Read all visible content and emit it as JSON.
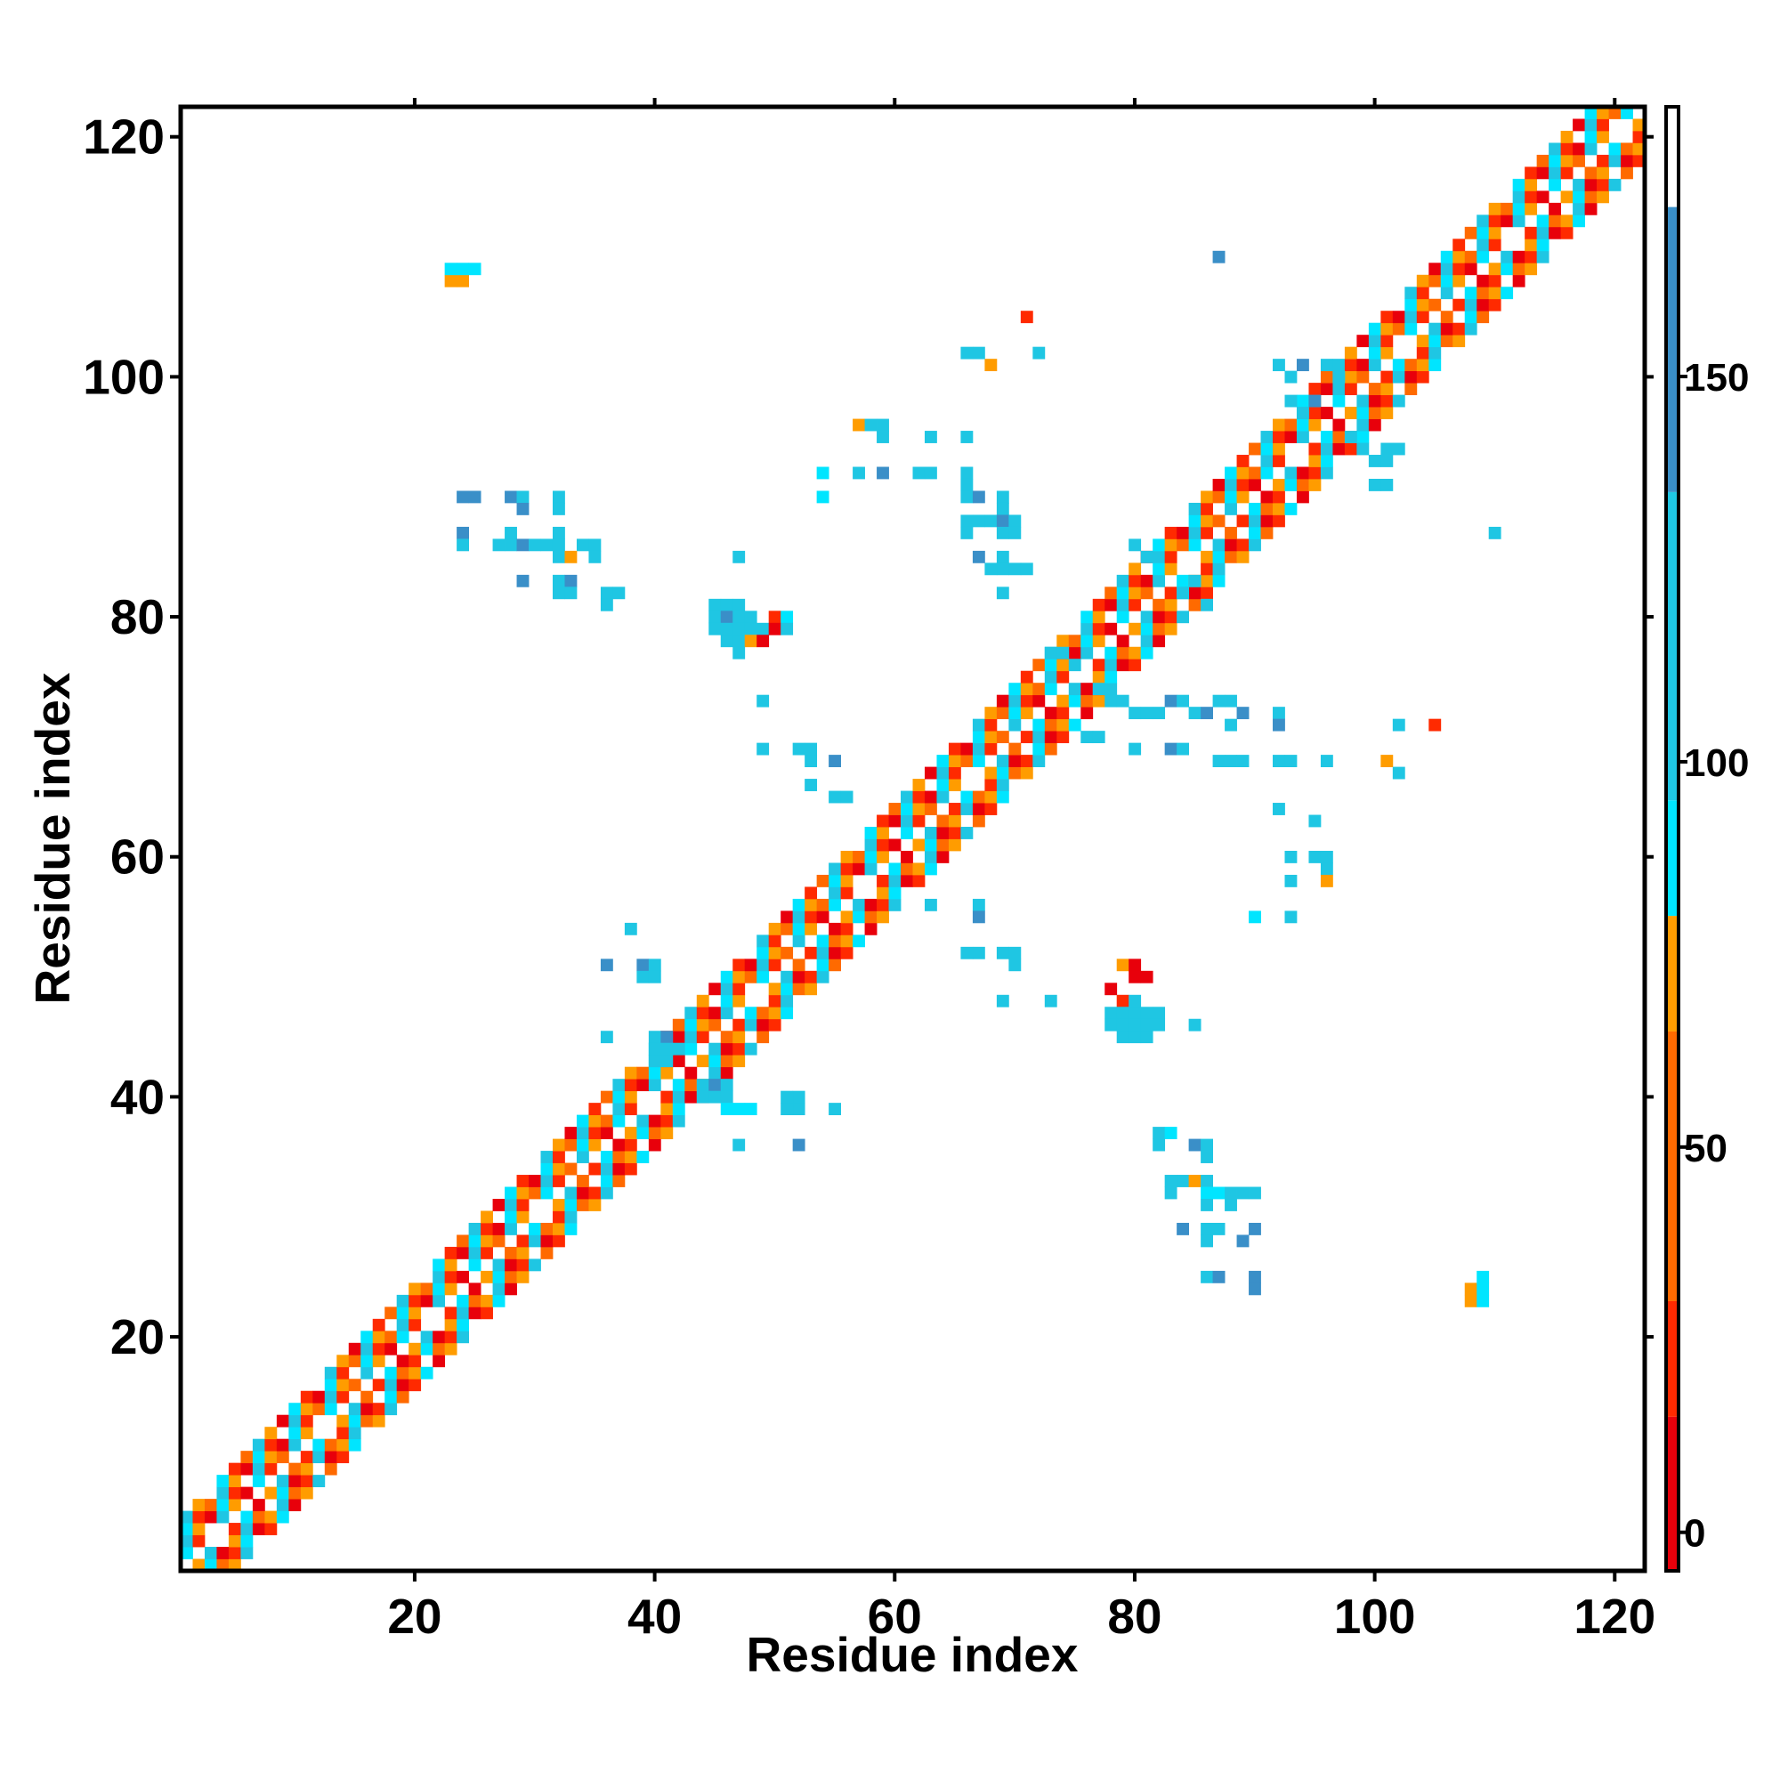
{
  "chart_data": {
    "type": "heatmap",
    "xlabel": "Residue index",
    "ylabel": "Residue index",
    "xlim": [
      0.5,
      122.5
    ],
    "ylim": [
      0.5,
      122.5
    ],
    "x_ticks": [
      20,
      40,
      60,
      80,
      100,
      120
    ],
    "y_ticks": [
      20,
      40,
      60,
      80,
      100,
      120
    ],
    "colorbar": {
      "range": [
        -5,
        185
      ],
      "ticks": [
        0,
        50,
        100,
        150
      ],
      "bands": [
        {
          "from": -5,
          "to": 15,
          "color": "#e8000b"
        },
        {
          "from": 15,
          "to": 30,
          "color": "#ff2a00"
        },
        {
          "from": 30,
          "to": 65,
          "color": "#ff6a00"
        },
        {
          "from": 65,
          "to": 80,
          "color": "#ff9c00"
        },
        {
          "from": 80,
          "to": 95,
          "color": "#00e5ff"
        },
        {
          "from": 95,
          "to": 135,
          "color": "#1fc6e3"
        },
        {
          "from": 135,
          "to": 172,
          "color": "#3a8fc8"
        },
        {
          "from": 172,
          "to": 185,
          "color": "#ffffff"
        }
      ]
    },
    "diagonal_band": {
      "color_cycle": [
        "#ff6a00",
        "#1fc6e3",
        "#ff9c00",
        "#e8000b",
        "#00e5ff",
        "#ff2a00"
      ],
      "half_width": 4
    },
    "off_diagonal_cells": [
      [
        23,
        108,
        "#ff9c00"
      ],
      [
        24,
        108,
        "#ff9c00"
      ],
      [
        23,
        109,
        "#00e5ff"
      ],
      [
        24,
        109,
        "#00e5ff"
      ],
      [
        25,
        109,
        "#00e5ff"
      ],
      [
        87,
        110,
        "#3a8fc8"
      ],
      [
        71,
        105,
        "#ff2a00"
      ],
      [
        66,
        102,
        "#1fc6e3"
      ],
      [
        68,
        101,
        "#ff9c00"
      ],
      [
        67,
        102,
        "#1fc6e3"
      ],
      [
        72,
        102,
        "#1fc6e3"
      ],
      [
        57,
        96,
        "#ff9c00"
      ],
      [
        58,
        96,
        "#1fc6e3"
      ],
      [
        59,
        96,
        "#1fc6e3"
      ],
      [
        59,
        95,
        "#1fc6e3"
      ],
      [
        63,
        95,
        "#1fc6e3"
      ],
      [
        66,
        95,
        "#1fc6e3"
      ],
      [
        54,
        92,
        "#00e5ff"
      ],
      [
        57,
        92,
        "#1fc6e3"
      ],
      [
        59,
        92,
        "#3a8fc8"
      ],
      [
        62,
        92,
        "#1fc6e3"
      ],
      [
        63,
        92,
        "#1fc6e3"
      ],
      [
        66,
        92,
        "#1fc6e3"
      ],
      [
        54,
        90,
        "#00e5ff"
      ],
      [
        66,
        91,
        "#1fc6e3"
      ],
      [
        66,
        90,
        "#1fc6e3"
      ],
      [
        67,
        90,
        "#3a8fc8"
      ],
      [
        69,
        90,
        "#1fc6e3"
      ],
      [
        69,
        89,
        "#1fc6e3"
      ],
      [
        66,
        88,
        "#1fc6e3"
      ],
      [
        67,
        88,
        "#1fc6e3"
      ],
      [
        68,
        88,
        "#1fc6e3"
      ],
      [
        69,
        88,
        "#3a8fc8"
      ],
      [
        70,
        88,
        "#1fc6e3"
      ],
      [
        66,
        87,
        "#1fc6e3"
      ],
      [
        69,
        87,
        "#1fc6e3"
      ],
      [
        70,
        87,
        "#1fc6e3"
      ],
      [
        67,
        85,
        "#3a8fc8"
      ],
      [
        69,
        85,
        "#1fc6e3"
      ],
      [
        69,
        84,
        "#1fc6e3"
      ],
      [
        70,
        84,
        "#1fc6e3"
      ],
      [
        71,
        84,
        "#1fc6e3"
      ],
      [
        68,
        84,
        "#1fc6e3"
      ],
      [
        69,
        82,
        "#1fc6e3"
      ],
      [
        24,
        90,
        "#3a8fc8"
      ],
      [
        25,
        90,
        "#3a8fc8"
      ],
      [
        28,
        90,
        "#3a8fc8"
      ],
      [
        29,
        90,
        "#1fc6e3"
      ],
      [
        32,
        90,
        "#1fc6e3"
      ],
      [
        29,
        89,
        "#3a8fc8"
      ],
      [
        32,
        89,
        "#1fc6e3"
      ],
      [
        24,
        87,
        "#3a8fc8"
      ],
      [
        28,
        87,
        "#1fc6e3"
      ],
      [
        32,
        87,
        "#1fc6e3"
      ],
      [
        24,
        86,
        "#1fc6e3"
      ],
      [
        27,
        86,
        "#1fc6e3"
      ],
      [
        28,
        86,
        "#1fc6e3"
      ],
      [
        29,
        86,
        "#3a8fc8"
      ],
      [
        30,
        86,
        "#1fc6e3"
      ],
      [
        31,
        86,
        "#1fc6e3"
      ],
      [
        32,
        86,
        "#1fc6e3"
      ],
      [
        34,
        86,
        "#1fc6e3"
      ],
      [
        35,
        86,
        "#1fc6e3"
      ],
      [
        32,
        85,
        "#1fc6e3"
      ],
      [
        33,
        85,
        "#ff9c00"
      ],
      [
        35,
        85,
        "#1fc6e3"
      ],
      [
        29,
        83,
        "#3a8fc8"
      ],
      [
        32,
        83,
        "#1fc6e3"
      ],
      [
        33,
        83,
        "#3a8fc8"
      ],
      [
        32,
        82,
        "#1fc6e3"
      ],
      [
        33,
        82,
        "#1fc6e3"
      ],
      [
        36,
        82,
        "#1fc6e3"
      ],
      [
        37,
        82,
        "#1fc6e3"
      ],
      [
        36,
        81,
        "#1fc6e3"
      ],
      [
        47,
        85,
        "#1fc6e3"
      ],
      [
        45,
        81,
        "#1fc6e3"
      ],
      [
        46,
        81,
        "#1fc6e3"
      ],
      [
        47,
        81,
        "#1fc6e3"
      ],
      [
        45,
        80,
        "#1fc6e3"
      ],
      [
        46,
        80,
        "#3a8fc8"
      ],
      [
        47,
        80,
        "#1fc6e3"
      ],
      [
        48,
        80,
        "#1fc6e3"
      ],
      [
        50,
        80,
        "#ff2a00"
      ],
      [
        51,
        80,
        "#00e5ff"
      ],
      [
        45,
        79,
        "#1fc6e3"
      ],
      [
        46,
        79,
        "#1fc6e3"
      ],
      [
        47,
        79,
        "#1fc6e3"
      ],
      [
        48,
        79,
        "#1fc6e3"
      ],
      [
        49,
        79,
        "#1fc6e3"
      ],
      [
        50,
        79,
        "#e8000b"
      ],
      [
        51,
        79,
        "#1fc6e3"
      ],
      [
        46,
        78,
        "#1fc6e3"
      ],
      [
        47,
        78,
        "#1fc6e3"
      ],
      [
        48,
        78,
        "#ff9c00"
      ],
      [
        49,
        78,
        "#e8000b"
      ],
      [
        47,
        77,
        "#1fc6e3"
      ],
      [
        49,
        73,
        "#1fc6e3"
      ],
      [
        49,
        69,
        "#1fc6e3"
      ],
      [
        52,
        69,
        "#1fc6e3"
      ],
      [
        53,
        69,
        "#1fc6e3"
      ],
      [
        55,
        68,
        "#3a8fc8"
      ],
      [
        53,
        68,
        "#1fc6e3"
      ],
      [
        53,
        66,
        "#1fc6e3"
      ],
      [
        55,
        65,
        "#1fc6e3"
      ],
      [
        56,
        65,
        "#1fc6e3"
      ],
      [
        52,
        39,
        "#1fc6e3"
      ],
      [
        51,
        39,
        "#1fc6e3"
      ],
      [
        52,
        40,
        "#1fc6e3"
      ],
      [
        51,
        40,
        "#1fc6e3"
      ],
      [
        55,
        39,
        "#1fc6e3"
      ],
      [
        47,
        36,
        "#1fc6e3"
      ],
      [
        52,
        36,
        "#3a8fc8"
      ],
      [
        38,
        54,
        "#1fc6e3"
      ],
      [
        36,
        51,
        "#3a8fc8"
      ],
      [
        39,
        51,
        "#3a8fc8"
      ],
      [
        40,
        51,
        "#1fc6e3"
      ],
      [
        39,
        50,
        "#1fc6e3"
      ],
      [
        40,
        50,
        "#1fc6e3"
      ],
      [
        36,
        45,
        "#1fc6e3"
      ],
      [
        80,
        72,
        "#1fc6e3"
      ],
      [
        81,
        72,
        "#1fc6e3"
      ],
      [
        82,
        72,
        "#1fc6e3"
      ],
      [
        83,
        73,
        "#3a8fc8"
      ],
      [
        84,
        73,
        "#1fc6e3"
      ],
      [
        85,
        72,
        "#1fc6e3"
      ],
      [
        86,
        72,
        "#3a8fc8"
      ],
      [
        87,
        73,
        "#1fc6e3"
      ],
      [
        88,
        73,
        "#1fc6e3"
      ],
      [
        89,
        72,
        "#3a8fc8"
      ],
      [
        88,
        71,
        "#1fc6e3"
      ],
      [
        92,
        72,
        "#1fc6e3"
      ],
      [
        92,
        71,
        "#3a8fc8"
      ],
      [
        83,
        69,
        "#3a8fc8"
      ],
      [
        84,
        69,
        "#1fc6e3"
      ],
      [
        80,
        69,
        "#1fc6e3"
      ],
      [
        76,
        70,
        "#1fc6e3"
      ],
      [
        77,
        70,
        "#1fc6e3"
      ],
      [
        87,
        68,
        "#1fc6e3"
      ],
      [
        88,
        68,
        "#1fc6e3"
      ],
      [
        89,
        68,
        "#1fc6e3"
      ],
      [
        92,
        68,
        "#1fc6e3"
      ],
      [
        93,
        68,
        "#1fc6e3"
      ],
      [
        96,
        68,
        "#1fc6e3"
      ],
      [
        92,
        64,
        "#1fc6e3"
      ],
      [
        95,
        63,
        "#1fc6e3"
      ],
      [
        102,
        71,
        "#1fc6e3"
      ],
      [
        105,
        71,
        "#ff2a00"
      ],
      [
        101,
        68,
        "#ff9c00"
      ],
      [
        102,
        67,
        "#1fc6e3"
      ],
      [
        93,
        60,
        "#1fc6e3"
      ],
      [
        95,
        60,
        "#1fc6e3"
      ],
      [
        96,
        60,
        "#1fc6e3"
      ],
      [
        93,
        58,
        "#1fc6e3"
      ],
      [
        96,
        59,
        "#1fc6e3"
      ],
      [
        96,
        58,
        "#ff9c00"
      ],
      [
        90,
        55,
        "#00e5ff"
      ],
      [
        93,
        55,
        "#1fc6e3"
      ],
      [
        63,
        56,
        "#1fc6e3"
      ],
      [
        67,
        56,
        "#1fc6e3"
      ],
      [
        67,
        55,
        "#3a8fc8"
      ],
      [
        66,
        52,
        "#1fc6e3"
      ],
      [
        67,
        52,
        "#1fc6e3"
      ],
      [
        69,
        52,
        "#1fc6e3"
      ],
      [
        70,
        52,
        "#1fc6e3"
      ],
      [
        70,
        51,
        "#1fc6e3"
      ],
      [
        69,
        48,
        "#1fc6e3"
      ],
      [
        73,
        48,
        "#1fc6e3"
      ],
      [
        79,
        51,
        "#ff9c00"
      ],
      [
        80,
        51,
        "#e8000b"
      ],
      [
        80,
        50,
        "#e8000b"
      ],
      [
        81,
        50,
        "#e8000b"
      ],
      [
        78,
        49,
        "#e8000b"
      ],
      [
        79,
        48,
        "#ff2a00"
      ],
      [
        80,
        48,
        "#1fc6e3"
      ],
      [
        78,
        47,
        "#1fc6e3"
      ],
      [
        79,
        47,
        "#1fc6e3"
      ],
      [
        80,
        47,
        "#1fc6e3"
      ],
      [
        81,
        47,
        "#1fc6e3"
      ],
      [
        82,
        47,
        "#1fc6e3"
      ],
      [
        78,
        46,
        "#1fc6e3"
      ],
      [
        79,
        46,
        "#1fc6e3"
      ],
      [
        80,
        46,
        "#1fc6e3"
      ],
      [
        81,
        46,
        "#1fc6e3"
      ],
      [
        82,
        46,
        "#1fc6e3"
      ],
      [
        79,
        45,
        "#1fc6e3"
      ],
      [
        80,
        45,
        "#1fc6e3"
      ],
      [
        81,
        45,
        "#1fc6e3"
      ],
      [
        85,
        46,
        "#1fc6e3"
      ],
      [
        82,
        37,
        "#1fc6e3"
      ],
      [
        83,
        37,
        "#00e5ff"
      ],
      [
        82,
        36,
        "#1fc6e3"
      ],
      [
        85,
        36,
        "#3a8fc8"
      ],
      [
        86,
        36,
        "#1fc6e3"
      ],
      [
        86,
        35,
        "#1fc6e3"
      ],
      [
        83,
        33,
        "#1fc6e3"
      ],
      [
        84,
        33,
        "#1fc6e3"
      ],
      [
        85,
        33,
        "#ff9c00"
      ],
      [
        86,
        33,
        "#1fc6e3"
      ],
      [
        83,
        32,
        "#1fc6e3"
      ],
      [
        86,
        32,
        "#00e5ff"
      ],
      [
        87,
        32,
        "#00e5ff"
      ],
      [
        88,
        32,
        "#1fc6e3"
      ],
      [
        89,
        32,
        "#1fc6e3"
      ],
      [
        90,
        32,
        "#1fc6e3"
      ],
      [
        86,
        31,
        "#1fc6e3"
      ],
      [
        88,
        31,
        "#1fc6e3"
      ],
      [
        84,
        29,
        "#3a8fc8"
      ],
      [
        86,
        29,
        "#1fc6e3"
      ],
      [
        87,
        29,
        "#1fc6e3"
      ],
      [
        90,
        29,
        "#3a8fc8"
      ],
      [
        86,
        28,
        "#1fc6e3"
      ],
      [
        89,
        28,
        "#3a8fc8"
      ],
      [
        86,
        25,
        "#1fc6e3"
      ],
      [
        87,
        25,
        "#3a8fc8"
      ],
      [
        90,
        25,
        "#3a8fc8"
      ],
      [
        90,
        24,
        "#3a8fc8"
      ],
      [
        108,
        24,
        "#ff9c00"
      ],
      [
        109,
        24,
        "#00e5ff"
      ],
      [
        109,
        25,
        "#00e5ff"
      ],
      [
        108,
        23,
        "#ff9c00"
      ],
      [
        109,
        23,
        "#00e5ff"
      ],
      [
        110,
        87,
        "#1fc6e3"
      ],
      [
        44,
        41,
        "#1fc6e3"
      ],
      [
        45,
        41,
        "#3a8fc8"
      ],
      [
        46,
        41,
        "#1fc6e3"
      ],
      [
        44,
        40,
        "#1fc6e3"
      ],
      [
        45,
        40,
        "#1fc6e3"
      ],
      [
        46,
        40,
        "#1fc6e3"
      ],
      [
        46,
        39,
        "#00e5ff"
      ],
      [
        47,
        39,
        "#00e5ff"
      ],
      [
        48,
        39,
        "#00e5ff"
      ],
      [
        40,
        45,
        "#1fc6e3"
      ],
      [
        41,
        45,
        "#3a8fc8"
      ],
      [
        40,
        44,
        "#1fc6e3"
      ],
      [
        41,
        44,
        "#1fc6e3"
      ],
      [
        42,
        44,
        "#1fc6e3"
      ],
      [
        40,
        43,
        "#1fc6e3"
      ],
      [
        41,
        43,
        "#1fc6e3"
      ],
      [
        85,
        83,
        "#1fc6e3"
      ],
      [
        84,
        82,
        "#1fc6e3"
      ],
      [
        86,
        81,
        "#1fc6e3"
      ],
      [
        80,
        86,
        "#1fc6e3"
      ],
      [
        81,
        85,
        "#1fc6e3"
      ],
      [
        73,
        77,
        "#1fc6e3"
      ],
      [
        74,
        77,
        "#1fc6e3"
      ],
      [
        75,
        76,
        "#1fc6e3"
      ],
      [
        77,
        74,
        "#1fc6e3"
      ],
      [
        78,
        73,
        "#1fc6e3"
      ],
      [
        79,
        73,
        "#1fc6e3"
      ],
      [
        93,
        98,
        "#1fc6e3"
      ],
      [
        94,
        97,
        "#1fc6e3"
      ],
      [
        95,
        98,
        "#3a8fc8"
      ],
      [
        98,
        95,
        "#1fc6e3"
      ],
      [
        99,
        94,
        "#1fc6e3"
      ],
      [
        100,
        93,
        "#1fc6e3"
      ],
      [
        101,
        94,
        "#1fc6e3"
      ],
      [
        101,
        93,
        "#1fc6e3"
      ],
      [
        102,
        94,
        "#1fc6e3"
      ],
      [
        100,
        91,
        "#1fc6e3"
      ],
      [
        101,
        91,
        "#1fc6e3"
      ],
      [
        92,
        101,
        "#1fc6e3"
      ],
      [
        94,
        101,
        "#3a8fc8"
      ],
      [
        96,
        101,
        "#1fc6e3"
      ],
      [
        97,
        100,
        "#1fc6e3"
      ],
      [
        93,
        100,
        "#1fc6e3"
      ]
    ]
  }
}
